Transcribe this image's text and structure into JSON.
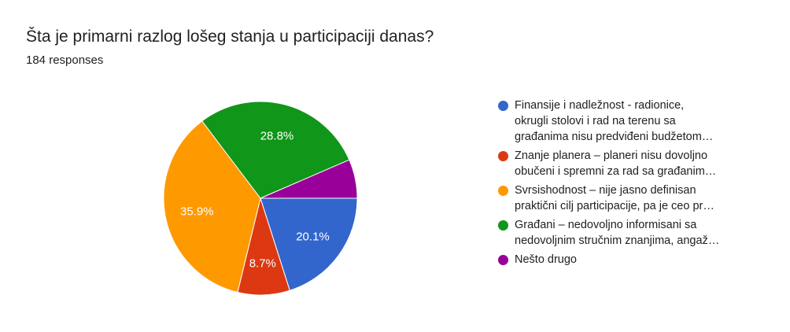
{
  "header": {
    "title": "Šta je primarni razlog lošeg stanja u participaciji danas?",
    "responses": "184 responses"
  },
  "chart_data": {
    "type": "pie",
    "slices": [
      {
        "label": "Finansije i nadležnost - radionice, okrugli stolovi i rad na terenu sa građanima nisu predviđeni budžetom…",
        "value": 20.1,
        "display": "20.1%",
        "color": "#3366cc"
      },
      {
        "label": "Znanje planera – planeri nisu dovoljno obučeni i spremni za rad sa građanim…",
        "value": 8.7,
        "display": "8.7%",
        "color": "#dc3912"
      },
      {
        "label": "Svrsishodnost – nije jasno definisan praktični cilj participacije, pa je ceo pr…",
        "value": 35.9,
        "display": "35.9%",
        "color": "#ff9900"
      },
      {
        "label": "Građani – nedovoljno informisani sa nedovoljnim stručnim znanjima, angaž…",
        "value": 28.8,
        "display": "28.8%",
        "color": "#109618"
      },
      {
        "label": "Nešto drugo",
        "value": 6.5,
        "display": "",
        "color": "#990099"
      }
    ]
  },
  "legend": {
    "items": [
      {
        "lines": [
          "Finansije i nadležnost - radionice,",
          "okrugli stolovi i rad na terenu sa",
          "građanima nisu predviđeni budžetom…"
        ],
        "color": "#3366cc"
      },
      {
        "lines": [
          "Znanje planera – planeri nisu dovoljno",
          "obučeni i spremni za rad sa građanim…"
        ],
        "color": "#dc3912"
      },
      {
        "lines": [
          "Svrsishodnost – nije jasno definisan",
          "praktični cilj participacije, pa je ceo pr…"
        ],
        "color": "#ff9900"
      },
      {
        "lines": [
          "Građani – nedovoljno informisani sa",
          "nedovoljnim stručnim znanjima, angaž…"
        ],
        "color": "#109618"
      },
      {
        "lines": [
          "Nešto drugo"
        ],
        "color": "#990099"
      }
    ]
  }
}
